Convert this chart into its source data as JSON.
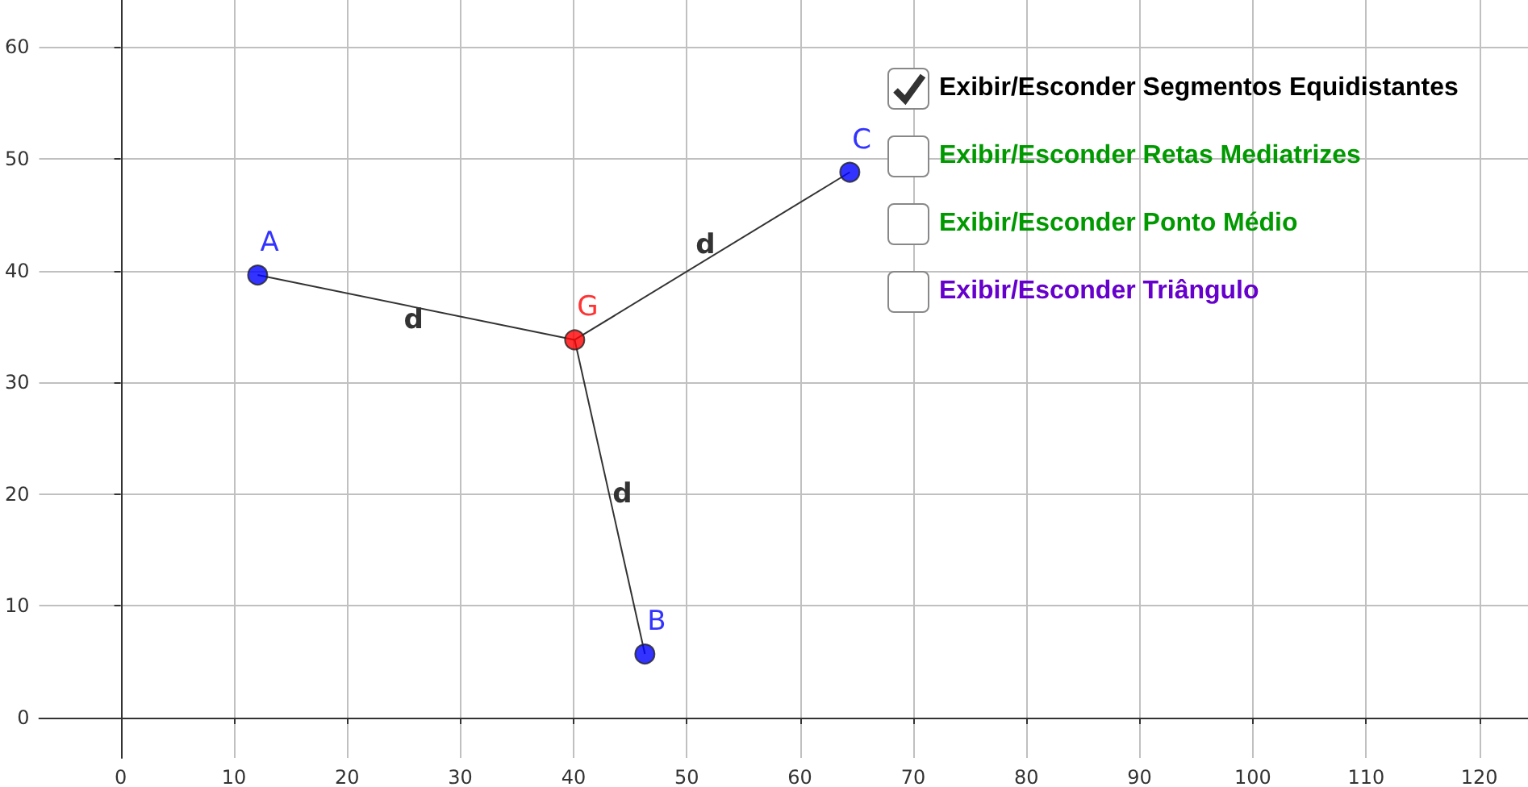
{
  "chart_data": {
    "type": "scatter",
    "xlim": [
      -7.2,
      124.3
    ],
    "ylim": [
      -3.6,
      64.2
    ],
    "xticks": [
      0,
      10,
      20,
      30,
      40,
      50,
      60,
      70,
      80,
      90,
      100,
      110,
      120
    ],
    "yticks": [
      0,
      10,
      20,
      30,
      40,
      50,
      60
    ],
    "grid": true,
    "legend": false,
    "marker": "circle",
    "series": [
      {
        "name": "d",
        "type": "line",
        "color": "#333333",
        "x": [
          40.1,
          12.1
        ],
        "values": [
          33.8,
          39.6
        ],
        "marker": "none"
      },
      {
        "name": "d",
        "type": "line",
        "color": "#333333",
        "x": [
          40.1,
          46.3
        ],
        "values": [
          33.8,
          5.7
        ],
        "marker": "none"
      },
      {
        "name": "d",
        "type": "line",
        "color": "#333333",
        "x": [
          40.1,
          64.4
        ],
        "values": [
          33.8,
          48.8
        ],
        "marker": "none"
      },
      {
        "name": "A",
        "color": "#0000ff",
        "x": [
          12.1
        ],
        "values": [
          39.6
        ]
      },
      {
        "name": "B",
        "color": "#0000ff",
        "x": [
          46.3
        ],
        "values": [
          5.7
        ]
      },
      {
        "name": "C",
        "color": "#0000ff",
        "x": [
          64.4
        ],
        "values": [
          48.8
        ]
      },
      {
        "name": "G",
        "color": "#ff0000",
        "x": [
          40.1
        ],
        "values": [
          33.8
        ]
      }
    ],
    "annotations": [
      "Exibir/Esconder Segmentos Equidistantes",
      "Exibir/Esconder Retas Mediatrizes",
      "Exibir/Esconder Ponto Médio",
      "Exibir/Esconder Triângulo"
    ]
  }
}
